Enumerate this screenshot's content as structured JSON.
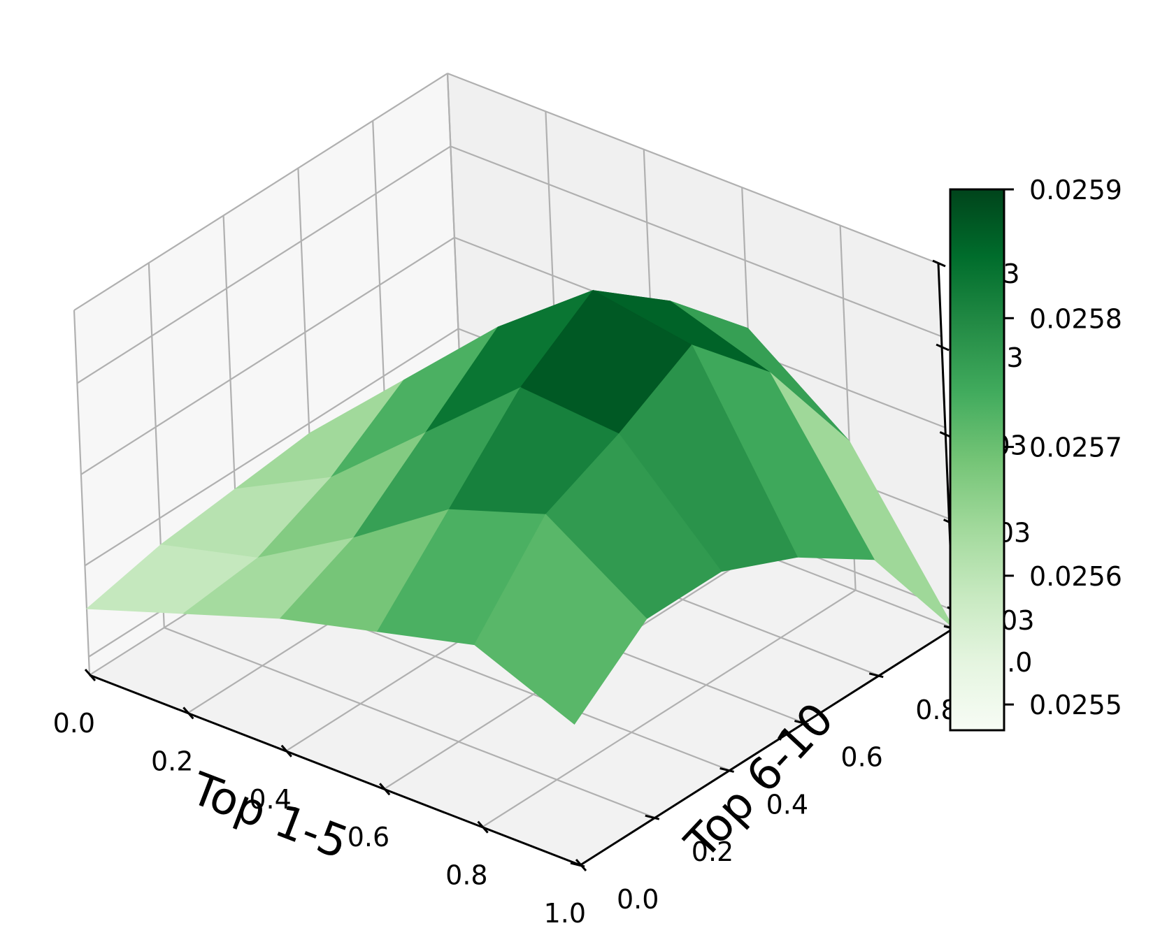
{
  "chart_data": {
    "type": "surface3d",
    "xlabel": "Top 1-5",
    "ylabel": "Top 6-10",
    "zlabel": "",
    "x": [
      0.0,
      0.2,
      0.4,
      0.6,
      0.8,
      1.0
    ],
    "y": [
      0.0,
      0.2,
      0.4,
      0.6,
      0.8,
      1.0
    ],
    "x_tick_labels": [
      "0.0",
      "0.2",
      "0.4",
      "0.6",
      "0.8",
      "1.0"
    ],
    "y_tick_labels": [
      "0.0",
      "0.2",
      "0.4",
      "0.6",
      "0.8",
      "1.0"
    ],
    "z_tick_labels": [
      "0.03",
      "0.03",
      "0.03",
      "0.03",
      "0.03"
    ],
    "z_values_note": "",
    "z": [
      [
        0.02556,
        0.0256,
        0.02564,
        0.02567,
        0.0257,
        0.02565
      ],
      [
        0.02558,
        0.02561,
        0.02568,
        0.02576,
        0.0258,
        0.02572
      ],
      [
        0.02559,
        0.02565,
        0.02575,
        0.02585,
        0.02584,
        0.02572
      ],
      [
        0.0256,
        0.02571,
        0.02582,
        0.02591,
        0.02589,
        0.02568
      ],
      [
        0.02556,
        0.02566,
        0.02578,
        0.02584,
        0.0258,
        0.02562
      ],
      [
        0.0255,
        0.0256,
        0.0257,
        0.02575,
        0.02566,
        0.02548
      ]
    ],
    "colormap": "Greens",
    "colorbar": {
      "min": 0.02548,
      "max": 0.0259,
      "ticks": [
        0.0255,
        0.0256,
        0.0257,
        0.0258,
        0.0259
      ],
      "tick_labels": [
        "0.0255",
        "0.0256",
        "0.0257",
        "0.0258",
        "0.0259"
      ],
      "placement": "right"
    },
    "grid": true,
    "colors": {
      "colormap_low": "#f7fcf5",
      "colormap_high": "#00441b",
      "pane": "#f2f2f2",
      "grid": "#b0b0b0"
    }
  }
}
